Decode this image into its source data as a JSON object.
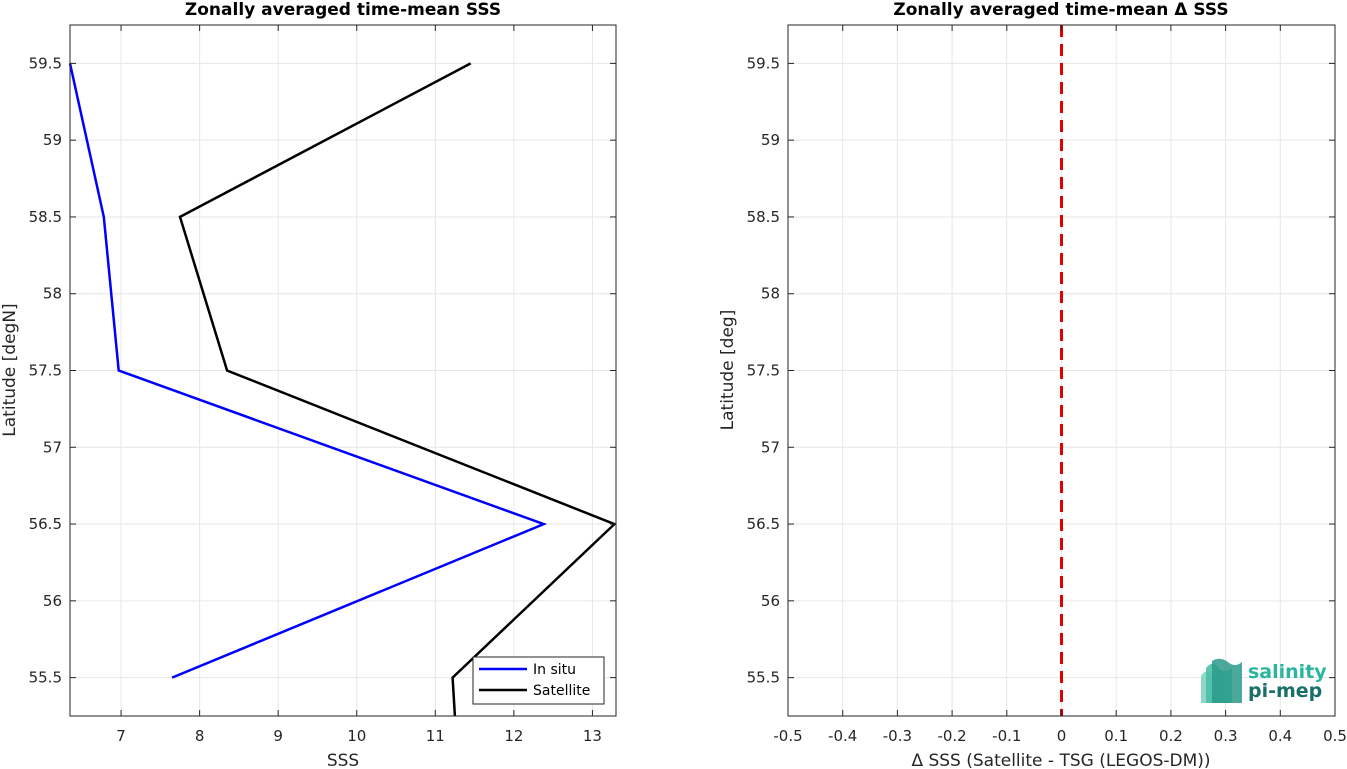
{
  "chart_data": [
    {
      "type": "line",
      "title": "Zonally averaged time-mean SSS",
      "xlabel": "SSS",
      "ylabel": "Latitude [degN]",
      "xlim": [
        6.35,
        13.3
      ],
      "ylim": [
        55.25,
        59.75
      ],
      "xticks": [
        7,
        8,
        9,
        10,
        11,
        12,
        13
      ],
      "yticks": [
        55.5,
        56,
        56.5,
        57,
        57.5,
        58,
        58.5,
        59,
        59.5
      ],
      "grid": true,
      "legend_location": "bottom-right",
      "series": [
        {
          "name": "In situ",
          "color": "#0000ff",
          "points": [
            {
              "x": 6.35,
              "y": 59.5
            },
            {
              "x": 6.78,
              "y": 58.5
            },
            {
              "x": 6.97,
              "y": 57.5
            },
            {
              "x": 12.38,
              "y": 56.5
            },
            {
              "x": 7.65,
              "y": 55.5
            }
          ]
        },
        {
          "name": "Satellite",
          "color": "#000000",
          "points": [
            {
              "x": 11.45,
              "y": 59.5
            },
            {
              "x": 7.75,
              "y": 58.5
            },
            {
              "x": 8.35,
              "y": 57.5
            },
            {
              "x": 13.28,
              "y": 56.5
            },
            {
              "x": 11.22,
              "y": 55.5
            },
            {
              "x": 11.25,
              "y": 55.25
            }
          ]
        }
      ]
    },
    {
      "type": "line",
      "title": "Zonally averaged time-mean Δ SSS",
      "xlabel": "Δ SSS (Satellite - TSG (LEGOS-DM))",
      "ylabel": "Latitude [deg]",
      "xlim": [
        -0.5,
        0.5
      ],
      "ylim": [
        55.25,
        59.75
      ],
      "xticks": [
        -0.5,
        -0.4,
        -0.3,
        -0.2,
        -0.1,
        0,
        0.1,
        0.2,
        0.3,
        0.4,
        0.5
      ],
      "yticks": [
        55.5,
        56,
        56.5,
        57,
        57.5,
        58,
        58.5,
        59,
        59.5
      ],
      "grid": true,
      "reference_line": {
        "x": 0,
        "color": "#e00000",
        "style": "dashed"
      },
      "series": []
    }
  ],
  "logo": {
    "line1": "salinity",
    "line2": "pi-mep",
    "color1": "#2bb5a0",
    "color2": "#1a6f6a"
  }
}
